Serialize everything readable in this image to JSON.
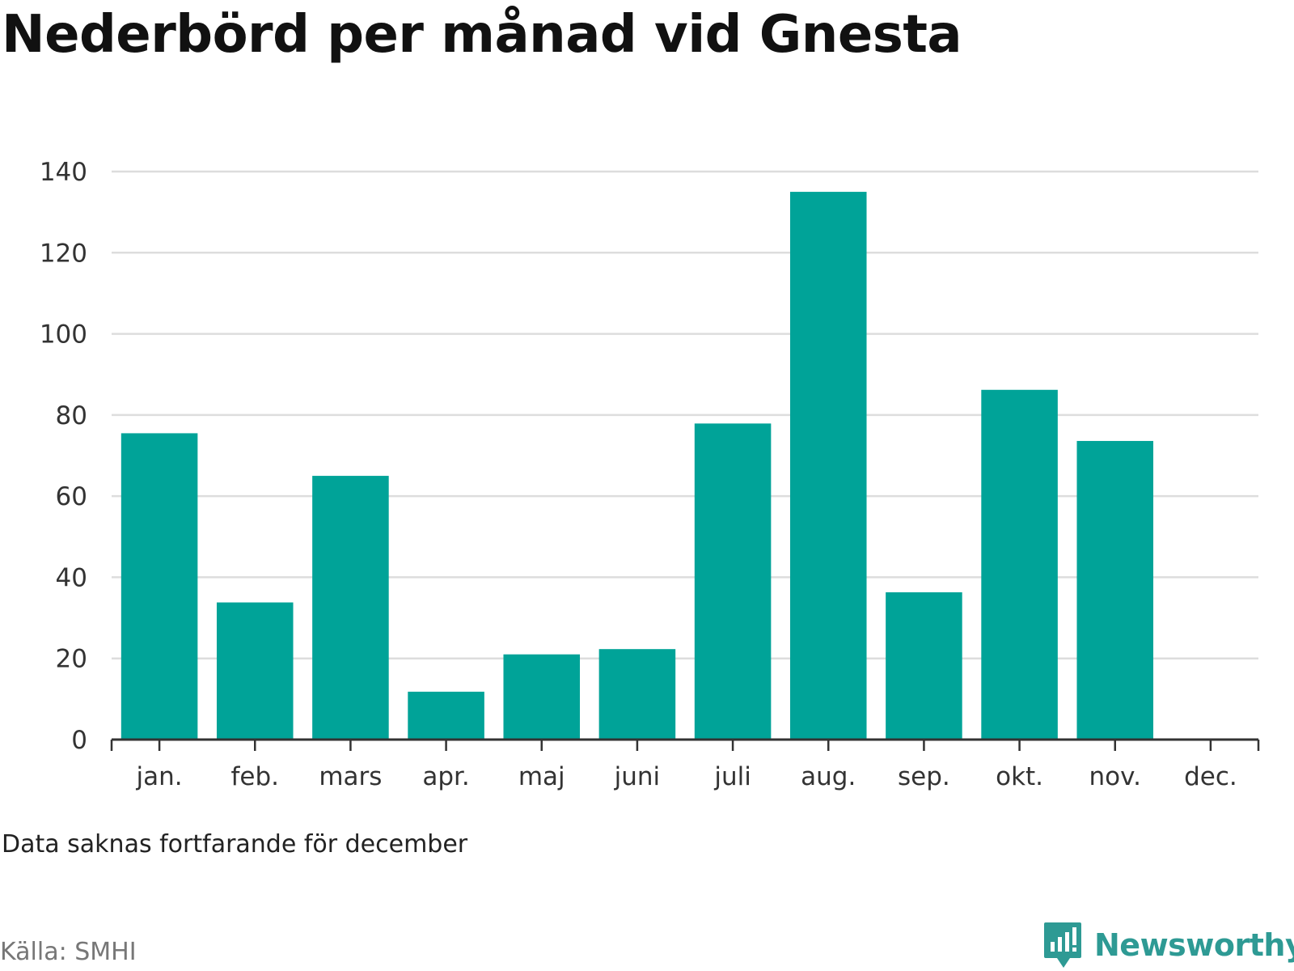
{
  "title": "Nederbörd per månad vid Gnesta",
  "note": "Data saknas fortfarande för december",
  "source": "Källa: SMHI",
  "brand": {
    "name": "Newsworthy",
    "color": "#2e9a94"
  },
  "colors": {
    "bar": "#00a398",
    "grid": "#dddddd",
    "axis": "#333333",
    "tick_text": "#333333"
  },
  "chart_data": {
    "type": "bar",
    "categories": [
      "jan.",
      "feb.",
      "mars",
      "apr.",
      "maj",
      "juni",
      "juli",
      "aug.",
      "sep.",
      "okt.",
      "nov.",
      "dec."
    ],
    "values": [
      75.5,
      33.8,
      65,
      11.8,
      21,
      22.3,
      77.9,
      135,
      36.3,
      86.2,
      73.6,
      null
    ],
    "ylim": [
      0,
      140
    ],
    "yticks": [
      0,
      20,
      40,
      60,
      80,
      100,
      120,
      140
    ],
    "grid": true,
    "legend": false
  }
}
